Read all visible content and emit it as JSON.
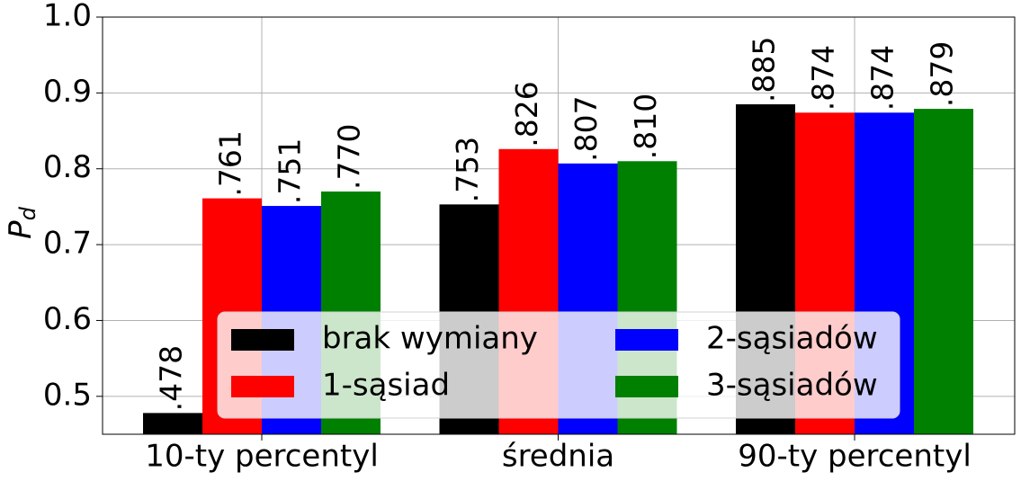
{
  "chart_data": {
    "type": "bar",
    "y_label": "P_d",
    "categories": [
      "10-ty percentyl",
      "średnia",
      "90-ty percentyl"
    ],
    "series": [
      {
        "name": "brak wymiany",
        "color": "#000000",
        "values": [
          0.478,
          0.753,
          0.885
        ],
        "value_labels": [
          ".478",
          ".753",
          ".885"
        ]
      },
      {
        "name": "1-sąsiad",
        "color": "#ff0000",
        "values": [
          0.761,
          0.826,
          0.874
        ],
        "value_labels": [
          ".761",
          ".826",
          ".874"
        ]
      },
      {
        "name": "2-sąsiadów",
        "color": "#0000ff",
        "values": [
          0.751,
          0.807,
          0.874
        ],
        "value_labels": [
          ".751",
          ".807",
          ".874"
        ]
      },
      {
        "name": "3-sąsiadów",
        "color": "#008000",
        "values": [
          0.77,
          0.81,
          0.879
        ],
        "value_labels": [
          ".770",
          ".810",
          ".879"
        ]
      }
    ],
    "ylim": [
      0.45,
      1.0
    ],
    "yticks": [
      0.5,
      0.6,
      0.7,
      0.8,
      0.9,
      {
        "value": 1.0,
        "label": "1.0"
      }
    ],
    "grid": true,
    "legend": "lower center"
  }
}
